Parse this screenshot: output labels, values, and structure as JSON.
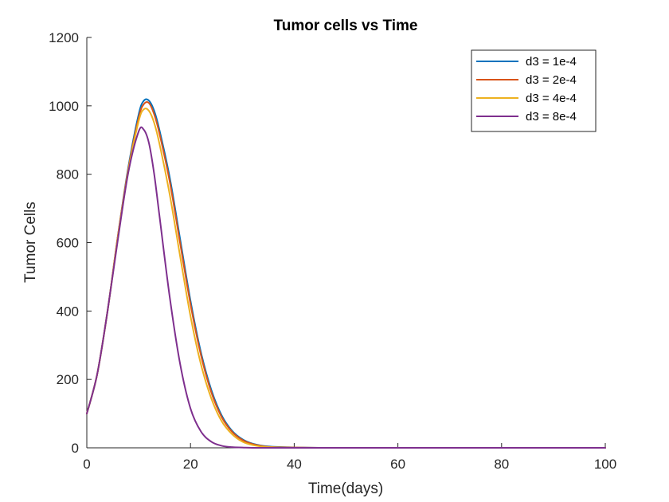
{
  "chart_data": {
    "type": "line",
    "title": "Tumor cells vs Time",
    "xlabel": "Time(days)",
    "ylabel": "Tumor Cells",
    "xlim": [
      0,
      100
    ],
    "ylim": [
      0,
      1200
    ],
    "xticks": [
      0,
      20,
      40,
      60,
      80,
      100
    ],
    "yticks": [
      0,
      200,
      400,
      600,
      800,
      1000,
      1200
    ],
    "grid": false,
    "legend_position": "top-right",
    "x": [
      0,
      2,
      4,
      6,
      8,
      10,
      11,
      12,
      13,
      14,
      16,
      18,
      20,
      22,
      24,
      26,
      28,
      30,
      32,
      35,
      40,
      45,
      50,
      60,
      70,
      80,
      90,
      100
    ],
    "series": [
      {
        "name": "d3 = 1e-4",
        "color": "#0072BD",
        "values": [
          100,
          215,
          400,
          620,
          820,
          975,
          1015,
          1015,
          985,
          930,
          790,
          610,
          430,
          280,
          170,
          95,
          50,
          25,
          12,
          4,
          1,
          0,
          0,
          0,
          0,
          0,
          0,
          0
        ]
      },
      {
        "name": "d3 = 2e-4",
        "color": "#D95319",
        "values": [
          100,
          215,
          400,
          620,
          815,
          965,
          1005,
          1008,
          975,
          920,
          778,
          598,
          420,
          272,
          163,
          90,
          47,
          23,
          11,
          3,
          1,
          0,
          0,
          0,
          0,
          0,
          0,
          0
        ]
      },
      {
        "name": "d3 = 4e-4",
        "color": "#EDB120",
        "values": [
          100,
          215,
          400,
          615,
          810,
          955,
          990,
          985,
          950,
          890,
          740,
          560,
          385,
          245,
          145,
          78,
          40,
          18,
          8,
          2,
          0,
          0,
          0,
          0,
          0,
          0,
          0,
          0
        ]
      },
      {
        "name": "d3 = 8e-4",
        "color": "#7E2F8E",
        "values": [
          100,
          215,
          400,
          610,
          805,
          925,
          930,
          890,
          800,
          680,
          440,
          245,
          115,
          48,
          18,
          6,
          2,
          1,
          0,
          0,
          0,
          0,
          0,
          0,
          0,
          0,
          0,
          0
        ]
      }
    ]
  }
}
